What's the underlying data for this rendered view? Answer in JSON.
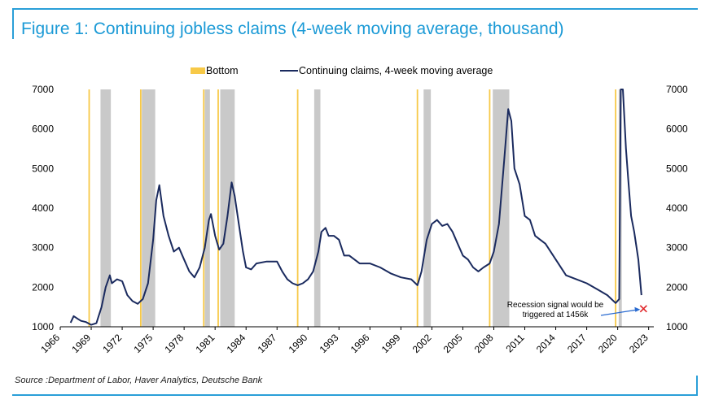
{
  "title": "Figure 1: Continuing jobless claims (4-week moving average, thousand)",
  "source": "Source :Department of Labor, Haver Analytics, Deutsche Bank",
  "colors": {
    "accent": "#1b9ad6",
    "line": "#1a2a5e",
    "bottom": "#f7c948",
    "recession": "#c9c9c9",
    "marker": "#e0262a",
    "arrow": "#2a6bd0"
  },
  "chart_data": {
    "type": "line",
    "title": "Figure 1: Continuing jobless claims (4-week moving average, thousand)",
    "xlabel": "",
    "ylabel": "",
    "xlim": [
      1966,
      2023.5
    ],
    "ylim": [
      1000,
      7000
    ],
    "y_ticks": [
      1000,
      2000,
      3000,
      4000,
      5000,
      6000,
      7000
    ],
    "x_ticks": [
      1966,
      1969,
      1972,
      1975,
      1978,
      1981,
      1984,
      1987,
      1990,
      1993,
      1996,
      1999,
      2002,
      2005,
      2008,
      2011,
      2014,
      2017,
      2020,
      2023
    ],
    "legend": [
      {
        "name": "Bottom",
        "kind": "bar",
        "color": "#f7c948"
      },
      {
        "name": "Continuing claims, 4-week moving average",
        "kind": "line",
        "color": "#1a2a5e"
      }
    ],
    "legend_position": "top-center",
    "grid": false,
    "recessions": [
      [
        1969.9,
        1970.9
      ],
      [
        1973.9,
        1975.2
      ],
      [
        1980.0,
        1980.5
      ],
      [
        1981.5,
        1982.9
      ],
      [
        1990.6,
        1991.2
      ],
      [
        2001.2,
        2001.9
      ],
      [
        2007.9,
        2009.5
      ],
      [
        2020.1,
        2020.4
      ]
    ],
    "bottoms": [
      1968.8,
      1973.8,
      1979.9,
      1981.3,
      1989.0,
      2000.6,
      2007.6,
      2019.8
    ],
    "series": [
      {
        "name": "Continuing claims, 4-week moving average",
        "x": [
          1967.0,
          1967.3,
          1967.7,
          1968.0,
          1968.5,
          1969.0,
          1969.5,
          1970.0,
          1970.4,
          1970.8,
          1971.0,
          1971.5,
          1972.0,
          1972.5,
          1973.0,
          1973.5,
          1974.0,
          1974.5,
          1975.0,
          1975.3,
          1975.6,
          1976.0,
          1976.5,
          1977.0,
          1977.5,
          1978.0,
          1978.5,
          1979.0,
          1979.5,
          1980.0,
          1980.4,
          1980.6,
          1981.0,
          1981.4,
          1981.8,
          1982.2,
          1982.6,
          1982.9,
          1983.3,
          1983.7,
          1984.0,
          1984.5,
          1985.0,
          1986.0,
          1987.0,
          1987.5,
          1988.0,
          1988.5,
          1989.0,
          1989.5,
          1990.0,
          1990.5,
          1991.0,
          1991.3,
          1991.7,
          1992.0,
          1992.5,
          1993.0,
          1993.5,
          1994.0,
          1995.0,
          1996.0,
          1997.0,
          1998.0,
          1999.0,
          2000.0,
          2000.6,
          2001.0,
          2001.5,
          2002.0,
          2002.5,
          2003.0,
          2003.5,
          2004.0,
          2004.5,
          2005.0,
          2005.5,
          2006.0,
          2006.5,
          2007.0,
          2007.6,
          2008.0,
          2008.5,
          2009.0,
          2009.4,
          2009.7,
          2010.0,
          2010.5,
          2011.0,
          2011.5,
          2012.0,
          2012.5,
          2013.0,
          2014.0,
          2015.0,
          2016.0,
          2017.0,
          2018.0,
          2019.0,
          2019.8,
          2020.15,
          2020.3,
          2020.5,
          2020.8,
          2021.0,
          2021.3,
          2021.6,
          2022.0,
          2022.3
        ],
        "values": [
          1100,
          1270,
          1200,
          1150,
          1120,
          1050,
          1090,
          1500,
          2000,
          2300,
          2100,
          2200,
          2150,
          1800,
          1650,
          1580,
          1700,
          2100,
          3200,
          4200,
          4580,
          3800,
          3300,
          2900,
          3000,
          2700,
          2400,
          2250,
          2500,
          3000,
          3700,
          3850,
          3300,
          2950,
          3100,
          3800,
          4650,
          4300,
          3600,
          2900,
          2500,
          2450,
          2600,
          2650,
          2650,
          2400,
          2200,
          2100,
          2050,
          2100,
          2200,
          2400,
          2900,
          3400,
          3500,
          3300,
          3300,
          3200,
          2800,
          2800,
          2600,
          2600,
          2500,
          2350,
          2250,
          2200,
          2050,
          2400,
          3200,
          3600,
          3700,
          3550,
          3600,
          3400,
          3100,
          2800,
          2700,
          2500,
          2400,
          2500,
          2600,
          2900,
          3600,
          5200,
          6500,
          6200,
          5000,
          4600,
          3800,
          3700,
          3300,
          3200,
          3100,
          2700,
          2300,
          2200,
          2100,
          1950,
          1800,
          1600,
          1700,
          7000,
          7000,
          5500,
          4800,
          3800,
          3400,
          2700,
          1800
        ]
      }
    ],
    "annotations": [
      {
        "text_lines": [
          "Recession signal would be",
          "triggered at 1456k"
        ],
        "points_to": {
          "x": 2022.5,
          "y": 1456
        },
        "marker": "x"
      }
    ]
  }
}
